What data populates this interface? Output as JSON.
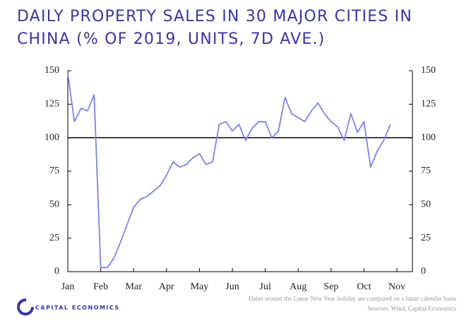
{
  "chart_data": {
    "type": "line",
    "title": "DAILY PROPERTY SALES IN 30 MAJOR CITIES IN CHINA (% OF 2019, UNITS, 7D AVE.)",
    "categories": [
      "Jan",
      null,
      null,
      null,
      null,
      "Feb",
      null,
      null,
      null,
      null,
      "Mar",
      null,
      null,
      null,
      null,
      "Apr",
      null,
      null,
      null,
      null,
      "May",
      null,
      null,
      null,
      null,
      "Jun",
      null,
      null,
      null,
      null,
      "Jul",
      null,
      null,
      null,
      null,
      "Aug",
      null,
      null,
      null,
      null,
      "Sep",
      null,
      null,
      null,
      null,
      "Oct",
      null,
      null,
      null,
      null,
      "Nov"
    ],
    "series": [
      {
        "color": "#7b83eb",
        "values": [
          148,
          112,
          122,
          120,
          132,
          3,
          3,
          10,
          22,
          35,
          48,
          54,
          56,
          60,
          64,
          72,
          82,
          78,
          80,
          85,
          88,
          80,
          82,
          110,
          112,
          105,
          110,
          98,
          107,
          112,
          112,
          100,
          105,
          130,
          118,
          115,
          112,
          120,
          126,
          118,
          112,
          108,
          98,
          118,
          104,
          112,
          78,
          90,
          98,
          110,
          null
        ]
      }
    ],
    "ylim": [
      0,
      150
    ],
    "yticks": [
      0,
      25,
      50,
      75,
      100,
      125,
      150
    ],
    "y2lim": [
      0,
      150
    ],
    "y2ticks": [
      0,
      25,
      50,
      75,
      100,
      125,
      150
    ],
    "reference_line": 100,
    "footnote": "Dates around the Lunar New Year holiday are compared on a lunar calendar basis",
    "source": "Sources: Wind, Capital Economics",
    "logo": "CAPITAL ECONOMICS"
  }
}
